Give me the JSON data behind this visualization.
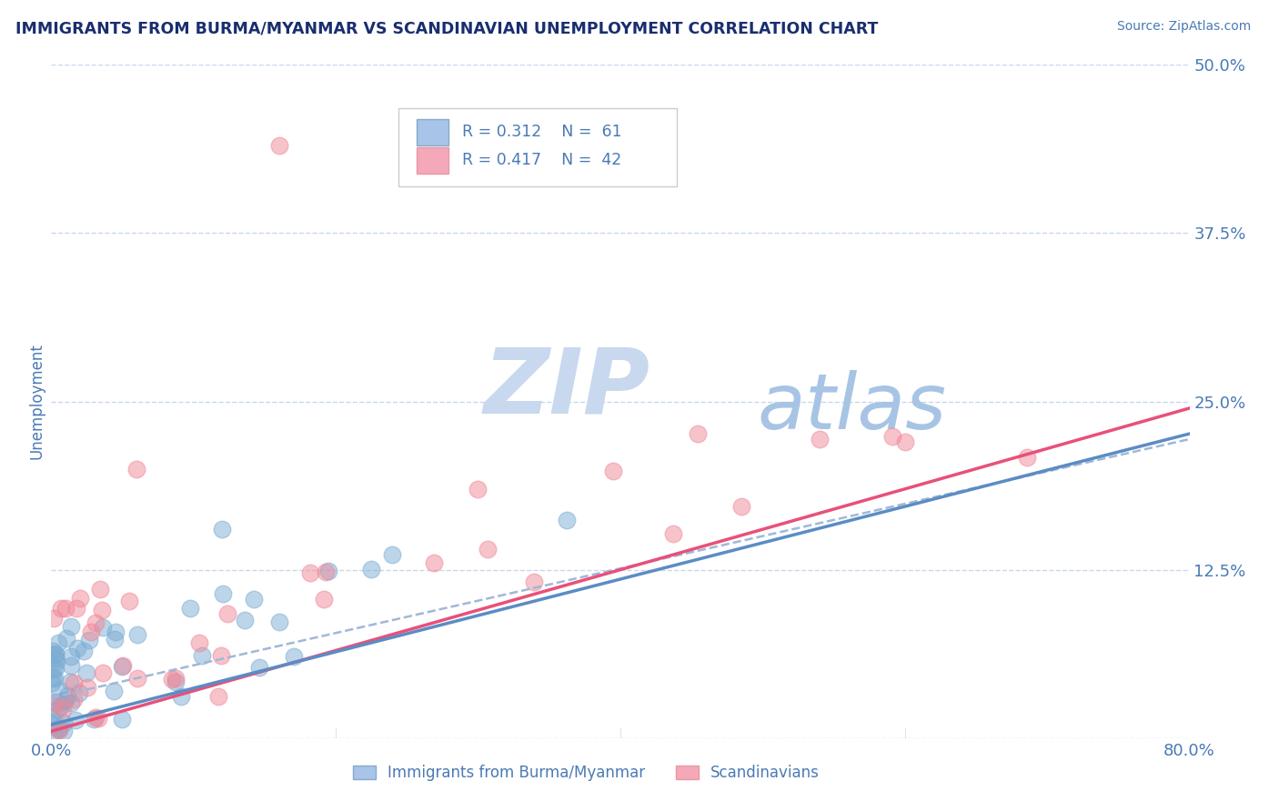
{
  "title": "IMMIGRANTS FROM BURMA/MYANMAR VS SCANDINAVIAN UNEMPLOYMENT CORRELATION CHART",
  "source": "Source: ZipAtlas.com",
  "ylabel": "Unemployment",
  "xlim": [
    0.0,
    0.8
  ],
  "ylim": [
    0.0,
    0.5
  ],
  "ytick_labels": [
    "",
    "12.5%",
    "25.0%",
    "37.5%",
    "50.0%"
  ],
  "ytick_vals": [
    0.0,
    0.125,
    0.25,
    0.375,
    0.5
  ],
  "xtick_vals": [
    0.0,
    0.2,
    0.4,
    0.6,
    0.8
  ],
  "xtick_labels": [
    "0.0%",
    "",
    "",
    "",
    "80.0%"
  ],
  "title_color": "#1a2e6e",
  "axis_color": "#4a7ab5",
  "grid_color": "#c8d8ec",
  "watermark_ZIP": "ZIP",
  "watermark_atlas": "atlas",
  "watermark_color_ZIP": "#c8d8ee",
  "watermark_color_atlas": "#a8c4e4",
  "legend_R1": "R = 0.312",
  "legend_N1": "N =  61",
  "legend_R2": "R = 0.417",
  "legend_N2": "N =  42",
  "legend_color1": "#a8c4e8",
  "legend_color2": "#f4a8b8",
  "series1_color": "#7badd4",
  "series2_color": "#f08898",
  "trendline1_color": "#5b8cc4",
  "trendline2_color": "#e8507a",
  "trendline_dashed_color": "#a0b8d8",
  "series1_name": "Immigrants from Burma/Myanmar",
  "series2_name": "Scandinavians",
  "trendline1_slope": 0.27,
  "trendline1_intercept": 0.01,
  "trendline2_slope": 0.3,
  "trendline2_intercept": 0.005
}
